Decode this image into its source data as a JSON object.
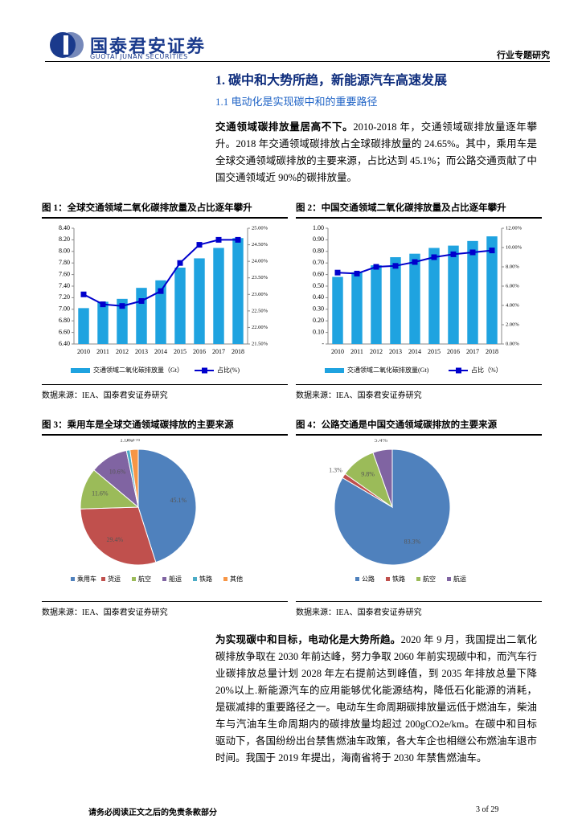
{
  "header": {
    "company": "国泰君安证券",
    "company_en": "GUOTAI JUNAN SECURITIES",
    "report_type": "行业专题研究"
  },
  "section": {
    "heading": "1. 碳中和大势所趋，新能源汽车高速发展",
    "subheading": "1.1 电动化是实现碳中和的重要路径"
  },
  "paragraphs": [
    {
      "lead": "交通领域碳排放量居高不下。",
      "body": "2010-2018 年，交通领域碳排放量逐年攀升。2018 年交通领域碳排放占全球碳排放量的 24.65%。其中，乘用车是全球交通领域碳排放的主要来源，占比达到 45.1%；而公路交通贡献了中国交通领域近 90%的碳排放量。"
    },
    {
      "lead": "为实现碳中和目标，电动化是大势所趋。",
      "body": "2020 年 9 月，我国提出二氧化碳排放争取在 2030 年前达峰，努力争取 2060 年前实现碳中和，而汽车行业碳排放总量计划 2028 年左右提前达到峰值，到 2035 年排放总量下降 20%以上.新能源汽车的应用能够优化能源结构，降低石化能源的消耗，是碳减排的重要路径之一。电动车生命周期碳排放量远低于燃油车，柴油车与汽油车生命周期内的碳排放量均超过 200gCO2e/km。在碳中和目标驱动下，各国纷纷出台禁售燃油车政策，各大车企也相继公布燃油车退市时间。我国于 2019 年提出，海南省将于 2030 年禁售燃油车。"
    }
  ],
  "chart_data": [
    {
      "type": "combo",
      "title": "图 1：全球交通领域二氧化碳排放量及占比逐年攀升",
      "source": "数据来源：IEA、国泰君安证券研究",
      "categories": [
        "2010",
        "2011",
        "2012",
        "2013",
        "2014",
        "2015",
        "2016",
        "2017",
        "2018"
      ],
      "series": [
        {
          "name": "交通领域二氧化碳排放量（Gt）",
          "color": "#1fa3e0",
          "values": [
            7.02,
            7.13,
            7.18,
            7.37,
            7.5,
            7.72,
            7.88,
            8.06,
            8.23
          ]
        },
        {
          "name": "占比(%)",
          "color": "#0000cc",
          "axis": "y2",
          "values": [
            23.0,
            22.7,
            22.65,
            22.8,
            23.1,
            23.95,
            24.5,
            24.65,
            24.65
          ]
        }
      ],
      "ylim": [
        6.4,
        8.4
      ],
      "yticks": [
        {
          "value": 6.4,
          "label": "6.40"
        },
        {
          "value": 6.6,
          "label": "6.60"
        },
        {
          "value": 6.8,
          "label": "6.80"
        },
        {
          "value": 7,
          "label": "7.00"
        },
        {
          "value": 7.2,
          "label": "7.20"
        },
        {
          "value": 7.4,
          "label": "7.40"
        },
        {
          "value": 7.6,
          "label": "7.60"
        },
        {
          "value": 7.8,
          "label": "7.80"
        },
        {
          "value": 8,
          "label": "8.00"
        },
        {
          "value": 8.2,
          "label": "8.20"
        },
        {
          "value": 8.4,
          "label": "8.40"
        }
      ],
      "y2lim": [
        21.5,
        25
      ],
      "y2ticks": [
        {
          "value": 21.5,
          "label": "21.50%"
        },
        {
          "value": 22,
          "label": "22.00%"
        },
        {
          "value": 22.5,
          "label": "22.50%"
        },
        {
          "value": 23,
          "label": "23.00%"
        },
        {
          "value": 23.5,
          "label": "23.50%"
        },
        {
          "value": 24,
          "label": "24.00%"
        },
        {
          "value": 24.5,
          "label": "24.50%"
        },
        {
          "value": 25,
          "label": "25.00%"
        }
      ]
    },
    {
      "type": "combo",
      "title": "图 2：中国交通领域二氧化碳排放量及占比逐年攀升",
      "source": "数据来源：IEA、国泰君安证券研究",
      "categories": [
        "2010",
        "2011",
        "2012",
        "2013",
        "2014",
        "2015",
        "2016",
        "2017",
        "2018"
      ],
      "series": [
        {
          "name": "交通领域二氧化碳排放量(Gt)",
          "color": "#1fa3e0",
          "values": [
            0.58,
            0.62,
            0.68,
            0.75,
            0.78,
            0.83,
            0.85,
            0.89,
            0.93
          ]
        },
        {
          "name": "占比（%）",
          "color": "#0000cc",
          "axis": "y2",
          "values": [
            7.4,
            7.3,
            8.0,
            8.1,
            8.5,
            9.0,
            9.3,
            9.5,
            9.7
          ]
        }
      ],
      "ylim": [
        0,
        1
      ],
      "yticks": [
        {
          "value": 0,
          "label": "-"
        },
        {
          "value": 0.1,
          "label": "0.10"
        },
        {
          "value": 0.2,
          "label": "0.20"
        },
        {
          "value": 0.3,
          "label": "0.30"
        },
        {
          "value": 0.4,
          "label": "0.40"
        },
        {
          "value": 0.5,
          "label": "0.50"
        },
        {
          "value": 0.6,
          "label": "0.60"
        },
        {
          "value": 0.7,
          "label": "0.70"
        },
        {
          "value": 0.8,
          "label": "0.80"
        },
        {
          "value": 0.9,
          "label": "0.90"
        },
        {
          "value": 1,
          "label": "1.00"
        }
      ],
      "y2lim": [
        0,
        12
      ],
      "y2ticks": [
        {
          "value": 0,
          "label": "0.00%"
        },
        {
          "value": 2,
          "label": "2.00%"
        },
        {
          "value": 4,
          "label": "4.00%"
        },
        {
          "value": 6,
          "label": "6.00%"
        },
        {
          "value": 8,
          "label": "8.00%"
        },
        {
          "value": 10,
          "label": "10.00%"
        },
        {
          "value": 12,
          "label": "12.00%"
        }
      ]
    },
    {
      "type": "pie",
      "title": "图 3：乘用车是全球交通领域碳排放的主要来源",
      "source": "数据来源：IEA、国泰君安证券研究",
      "categories": [
        "乘用车",
        "货运",
        "航空",
        "船运",
        "铁路",
        "其他"
      ],
      "values": [
        45.1,
        29.4,
        11.6,
        10.6,
        1.0,
        2.3
      ],
      "value_labels": [
        "45.1%",
        "29.4%",
        "11.6%",
        "10.6%",
        "1.0%",
        "2.3%"
      ],
      "colors": [
        "#4f81bd",
        "#c0504d",
        "#9bbb59",
        "#8064a2",
        "#4bacc6",
        "#f79646"
      ]
    },
    {
      "type": "pie",
      "title": "图 4：公路交通是中国交通领域碳排放的主要来源",
      "source": "数据来源：IEA、国泰君安证券研究",
      "categories": [
        "公路",
        "铁路",
        "航空",
        "航运"
      ],
      "values": [
        83.3,
        1.3,
        9.8,
        5.4
      ],
      "value_labels": [
        "83.3%",
        "1.3%",
        "9.8%",
        "5.4%"
      ],
      "colors": [
        "#4f81bd",
        "#c0504d",
        "#9bbb59",
        "#8064a2"
      ]
    }
  ],
  "footer": {
    "disclaimer": "请务必阅读正文之后的免责条款部分",
    "page": "3 of 29"
  }
}
